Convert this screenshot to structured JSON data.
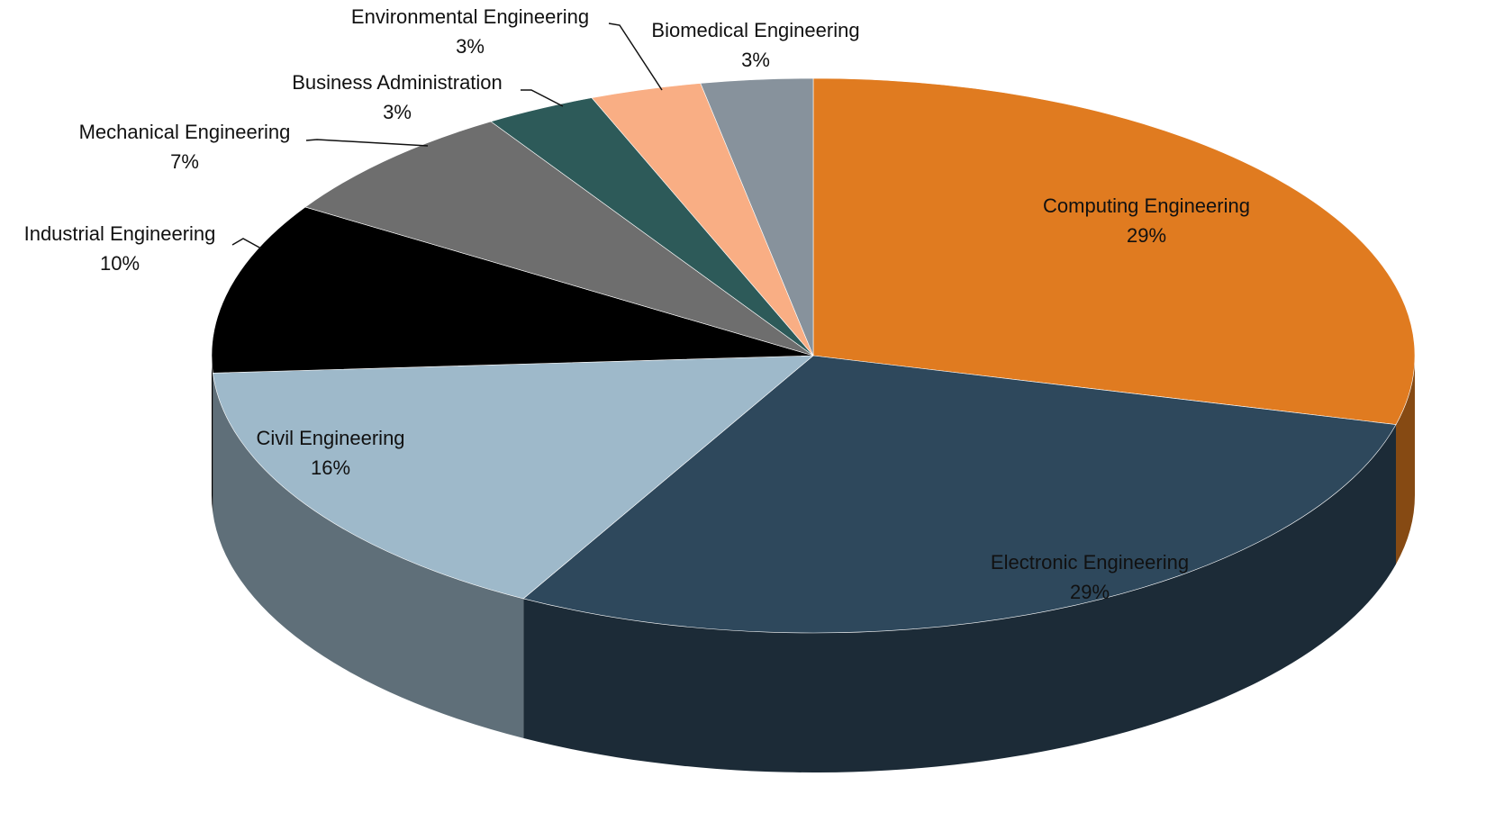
{
  "chart_data": {
    "type": "pie",
    "categories": [
      "Computing Engineering",
      "Electronic Engineering",
      "Civil Engineering",
      "Industrial Engineering",
      "Mechanical Engineering",
      "Business Administration",
      "Environmental Engineering",
      "Biomedical Engineering"
    ],
    "values": [
      29,
      29,
      16,
      10,
      7,
      3,
      3,
      3
    ],
    "value_labels": [
      "29%",
      "29%",
      "16%",
      "10%",
      "7%",
      "3%",
      "3%",
      "3%"
    ],
    "colors": [
      "#e07b20",
      "#2e485c",
      "#9eb9ca",
      "#000000",
      "#6e6e6e",
      "#2d5a59",
      "#f9ae84",
      "#87929c"
    ]
  }
}
